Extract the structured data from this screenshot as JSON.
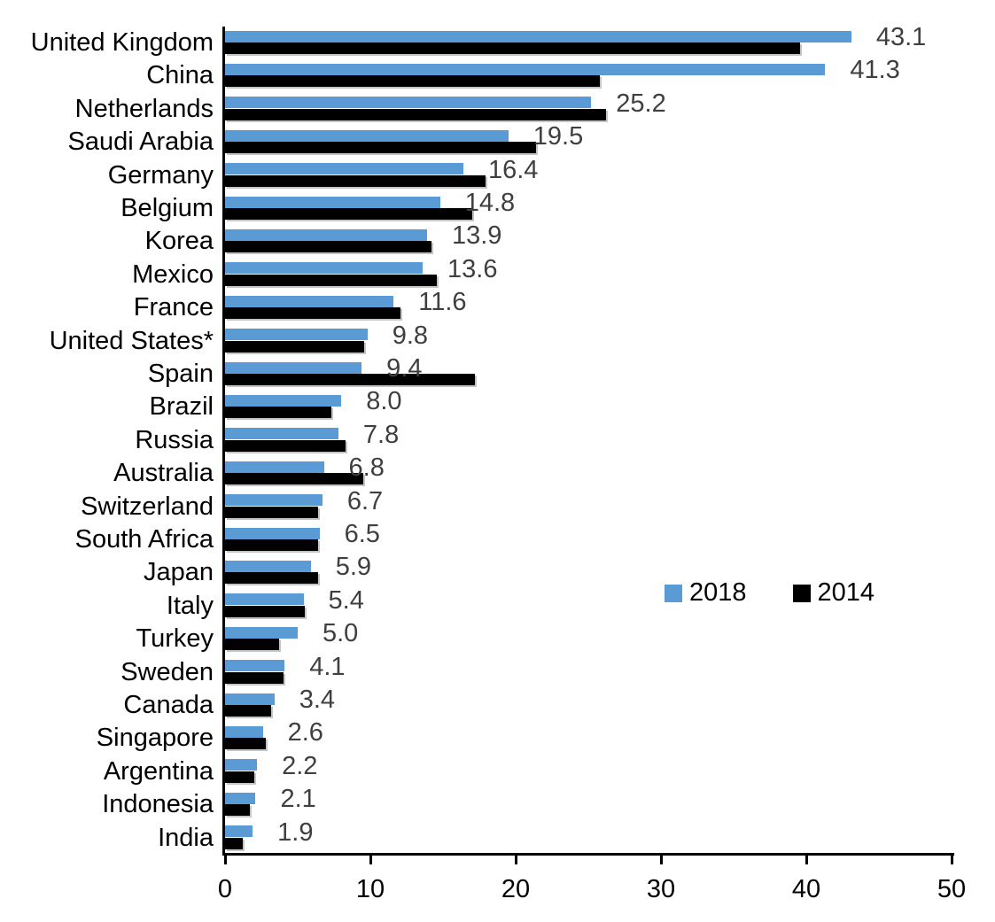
{
  "chart_data": {
    "type": "bar",
    "orientation": "horizontal",
    "title": "",
    "xlabel": "",
    "ylabel": "",
    "xlim": [
      0,
      50
    ],
    "xticks": [
      "0",
      "10",
      "20",
      "30",
      "40",
      "50"
    ],
    "xtick_values": [
      0,
      10,
      20,
      30,
      40,
      50
    ],
    "grid": "off",
    "legend_position": "middle-right",
    "categories": [
      "United Kingdom",
      "China",
      "Netherlands",
      "Saudi Arabia",
      "Germany",
      "Belgium",
      "Korea",
      "Mexico",
      "France",
      "United States*",
      "Spain",
      "Brazil",
      "Russia",
      "Australia",
      "Switzerland",
      "South Africa",
      "Japan",
      "Italy",
      "Turkey",
      "Sweden",
      "Canada",
      "Singapore",
      "Argentina",
      "Indonesia",
      "India"
    ],
    "series": [
      {
        "name": "2018",
        "color": "#5B9BD5",
        "values": [
          43.1,
          41.3,
          25.2,
          19.5,
          16.4,
          14.8,
          13.9,
          13.6,
          11.6,
          9.8,
          9.4,
          8.0,
          7.8,
          6.8,
          6.7,
          6.5,
          5.9,
          5.4,
          5.0,
          4.1,
          3.4,
          2.6,
          2.2,
          2.1,
          1.9
        ],
        "data_labels": [
          "43.1",
          "41.3",
          "25.2",
          "19.5",
          "16.4",
          "14.8",
          "13.9",
          "13.6",
          "11.6",
          "9.8",
          "9.4",
          "8.0",
          "7.8",
          "6.8",
          "6.7",
          "6.5",
          "5.9",
          "5.4",
          "5.0",
          "4.1",
          "3.4",
          "2.6",
          "2.2",
          "2.1",
          "1.9"
        ]
      },
      {
        "name": "2014",
        "color": "#000000",
        "values": [
          39.6,
          25.8,
          26.2,
          21.4,
          17.9,
          17.0,
          14.2,
          14.6,
          12.1,
          9.6,
          17.2,
          7.3,
          8.3,
          9.5,
          6.4,
          6.4,
          6.4,
          5.5,
          3.7,
          4.0,
          3.2,
          2.8,
          2.0,
          1.7,
          1.2
        ],
        "data_labels": []
      }
    ],
    "data_label_color": "#3f3f3f",
    "axis_color": "#000000"
  },
  "legend": {
    "entries": [
      {
        "label": "2018",
        "color": "#5B9BD5"
      },
      {
        "label": "2014",
        "color": "#000000"
      }
    ]
  }
}
